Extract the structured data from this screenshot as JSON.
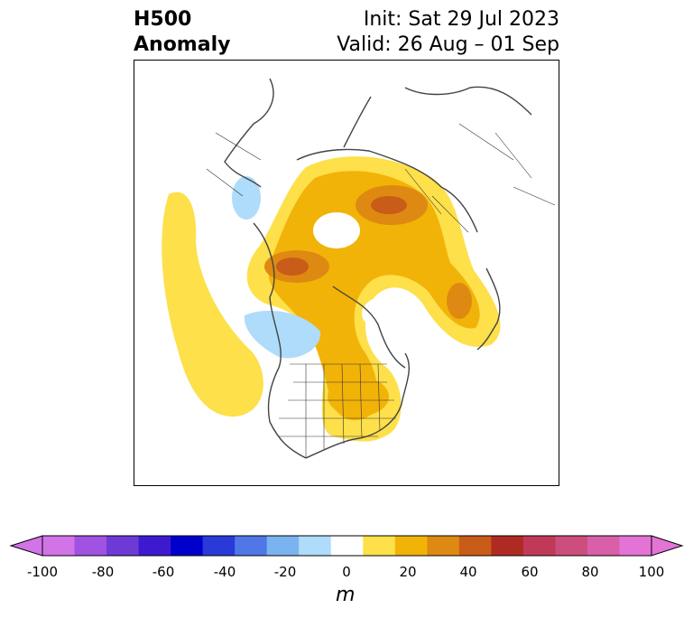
{
  "title": {
    "left_line1": "H500",
    "left_line2": "Anomaly",
    "right_line1": "Init: Sat 29 Jul 2023",
    "right_line2": "Valid: 26 Aug – 01 Sep"
  },
  "colorbar": {
    "unit": "m",
    "ticks": [
      "-100",
      "-80",
      "-60",
      "-40",
      "-20",
      "0",
      "20",
      "40",
      "60",
      "80",
      "100"
    ],
    "colors": [
      "#d273e8",
      "#a052e0",
      "#6d3ad6",
      "#3d1ad0",
      "#0000cc",
      "#2a3ad9",
      "#4f78e6",
      "#7ab4f0",
      "#aedcfa",
      "#ffffff",
      "#fde04a",
      "#f2b308",
      "#de8a12",
      "#c85c18",
      "#b02a24",
      "#c03a58",
      "#cc4e7c",
      "#d860a8",
      "#e473d6"
    ],
    "extend_min_color": "#d273e8",
    "extend_max_color": "#e473d6"
  }
}
